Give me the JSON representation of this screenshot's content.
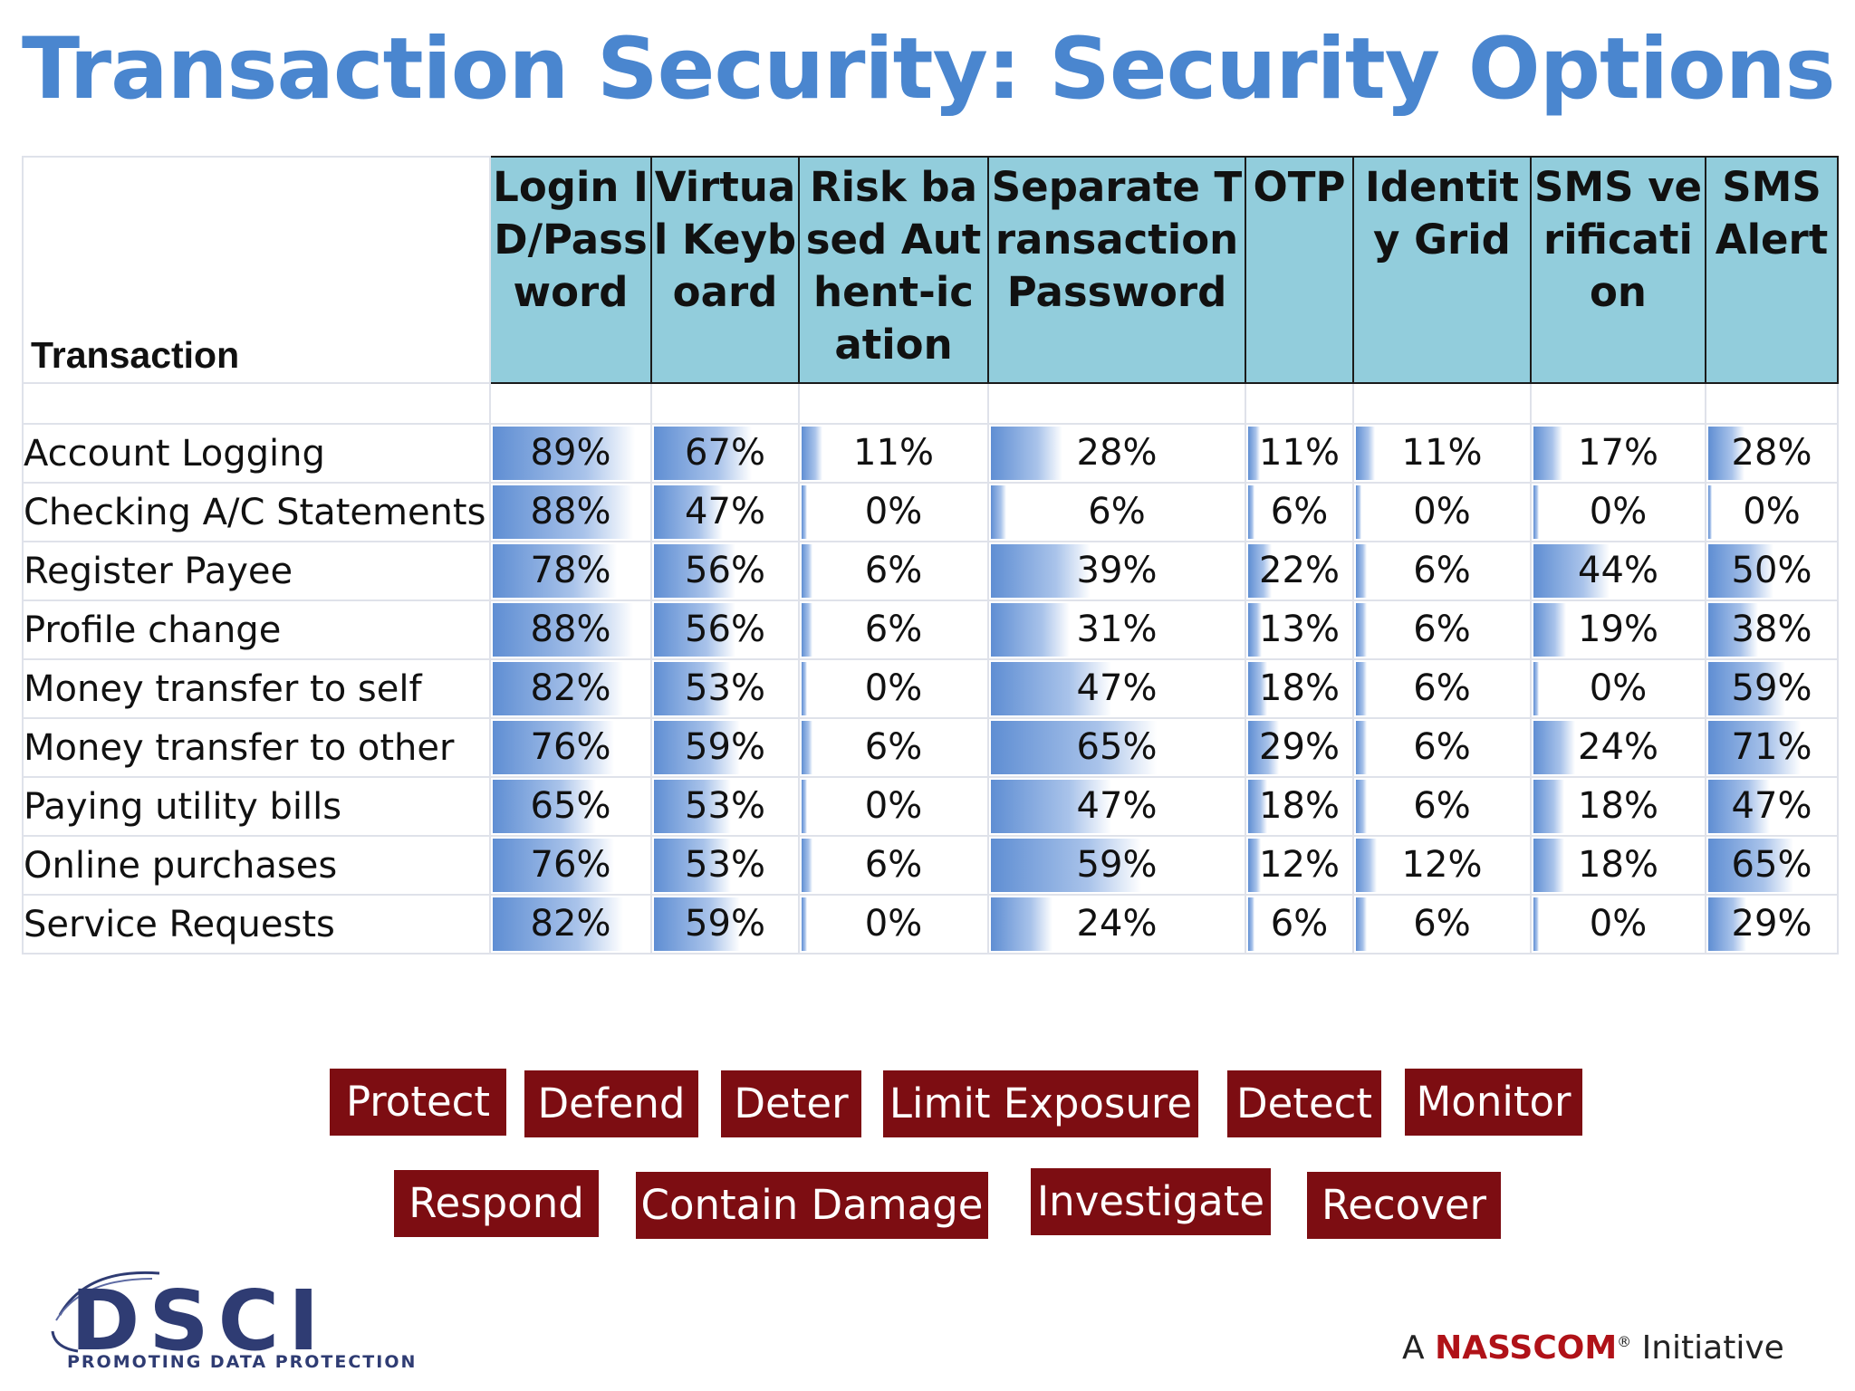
{
  "title": "Transaction Security: Security Options",
  "table": {
    "corner_label": "Transaction",
    "columns": [
      "Login ID/Password",
      "Virtual Keyboard",
      "Risk based Authent-ication",
      "Separate Transaction Password",
      "OTP",
      "Identity Grid",
      "SMS verification",
      "SMS Alert"
    ],
    "rows": [
      {
        "label": "Account Logging",
        "values": [
          89,
          67,
          11,
          28,
          11,
          11,
          17,
          28
        ],
        "display": [
          "89%",
          "67%",
          "11%",
          "28%",
          "11%",
          "11%",
          "17%",
          "28%"
        ]
      },
      {
        "label": "Checking A/C Statements",
        "values": [
          88,
          47,
          0,
          6,
          6,
          0,
          0,
          0
        ],
        "display": [
          "88%",
          "47%",
          "0%",
          "6%",
          "6%",
          "0%",
          "0%",
          "0%"
        ]
      },
      {
        "label": "Register Payee",
        "values": [
          78,
          56,
          6,
          39,
          22,
          6,
          44,
          50
        ],
        "display": [
          "78%",
          "56%",
          "6%",
          "39%",
          "22%",
          "6%",
          "44%",
          "50%"
        ]
      },
      {
        "label": "Profile change",
        "values": [
          88,
          56,
          6,
          31,
          13,
          6,
          19,
          38
        ],
        "display": [
          "88%",
          "56%",
          "6%",
          "31%",
          "13%",
          "6%",
          "19%",
          "38%"
        ]
      },
      {
        "label": "Money transfer to self",
        "values": [
          82,
          53,
          0,
          47,
          18,
          6,
          0,
          59
        ],
        "display": [
          "82%",
          "53%",
          "0%",
          "47%",
          "18%",
          "6%",
          "0%",
          "59%"
        ]
      },
      {
        "label": "Money transfer to other",
        "values": [
          76,
          59,
          6,
          65,
          29,
          6,
          24,
          71
        ],
        "display": [
          "76%",
          "59%",
          "6%",
          "65%",
          "29%",
          "6%",
          "24%",
          "71%"
        ]
      },
      {
        "label": "Paying utility bills",
        "values": [
          65,
          53,
          0,
          47,
          18,
          6,
          18,
          47
        ],
        "display": [
          "65%",
          "53%",
          "0%",
          "47%",
          "18%",
          "6%",
          "18%",
          "47%"
        ]
      },
      {
        "label": "Online purchases",
        "values": [
          76,
          53,
          6,
          59,
          12,
          12,
          18,
          65
        ],
        "display": [
          "76%",
          "53%",
          "6%",
          "59%",
          "12%",
          "12%",
          "18%",
          "65%"
        ]
      },
      {
        "label": "Service Requests",
        "values": [
          82,
          59,
          0,
          24,
          6,
          6,
          0,
          29
        ],
        "display": [
          "82%",
          "59%",
          "0%",
          "24%",
          "6%",
          "6%",
          "0%",
          "29%"
        ]
      }
    ]
  },
  "tags_row1": [
    "Protect",
    "Defend",
    "Deter",
    "Limit Exposure",
    "Detect",
    "Monitor"
  ],
  "tags_row2": [
    "Respond",
    "Contain Damage",
    "Investigate",
    "Recover"
  ],
  "logo": {
    "text": "DSCI",
    "tagline": "PROMOTING DATA PROTECTION"
  },
  "footer": {
    "prefix": "A",
    "brand": "NASSCOM",
    "registered": "®",
    "suffix": "Initiative"
  },
  "colors": {
    "title": "#4a86cf",
    "header_bg": "#92cddc",
    "tag_bg": "#7d0d12",
    "bar": "#5f8ed3",
    "brand_red": "#b01218",
    "logo_navy": "#2f3c73"
  }
}
